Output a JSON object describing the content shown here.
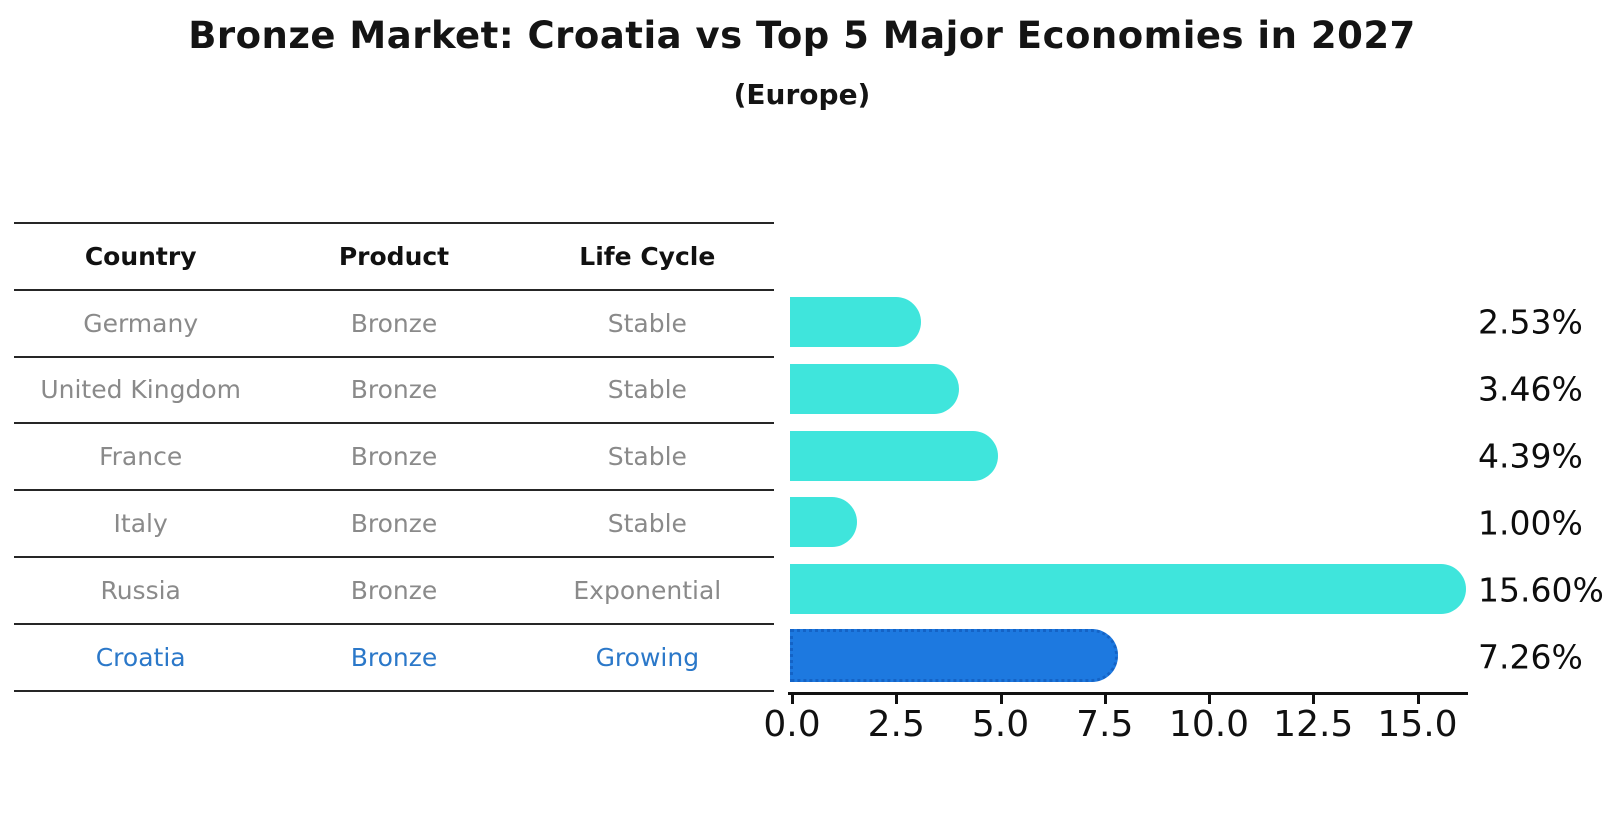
{
  "header": {
    "title": "Bronze Market: Croatia vs Top 5 Major Economies in 2027",
    "subtitle": "(Europe)"
  },
  "table": {
    "columns": [
      "Country",
      "Product",
      "Life Cycle"
    ],
    "rows": [
      {
        "country": "Germany",
        "product": "Bronze",
        "life_cycle": "Stable"
      },
      {
        "country": "United Kingdom",
        "product": "Bronze",
        "life_cycle": "Stable"
      },
      {
        "country": "France",
        "product": "Bronze",
        "life_cycle": "Stable"
      },
      {
        "country": "Italy",
        "product": "Bronze",
        "life_cycle": "Stable"
      },
      {
        "country": "Russia",
        "product": "Bronze",
        "life_cycle": "Exponential"
      },
      {
        "country": "Croatia",
        "product": "Bronze",
        "life_cycle": "Growing"
      }
    ]
  },
  "chart_data": {
    "type": "bar",
    "orientation": "horizontal",
    "title": "Bronze Market: Croatia vs Top 5 Major Economies in 2027",
    "subtitle": "(Europe)",
    "categories": [
      "Germany",
      "United Kingdom",
      "France",
      "Italy",
      "Russia",
      "Croatia"
    ],
    "values": [
      2.53,
      3.46,
      4.39,
      1.0,
      15.6,
      7.26
    ],
    "value_labels": [
      "2.53%",
      "3.46%",
      "4.39%",
      "1.00%",
      "15.60%",
      "7.26%"
    ],
    "x_ticks": [
      0.0,
      2.5,
      5.0,
      7.5,
      10.0,
      12.5,
      15.0
    ],
    "x_tick_labels": [
      "0.0",
      "2.5",
      "5.0",
      "7.5",
      "10.0",
      "12.5",
      "15.0"
    ],
    "xlim": [
      0,
      16.25
    ],
    "grid": false,
    "legend": "none",
    "highlight_category": "Croatia",
    "colors": {
      "bar": "#3fe5dc",
      "highlight_bar": "#1d79e0",
      "highlight_border": "#1463c6",
      "highlight_text": "#2b78c9",
      "row_text": "#8a8a8a",
      "axis_text": "#111111"
    }
  }
}
